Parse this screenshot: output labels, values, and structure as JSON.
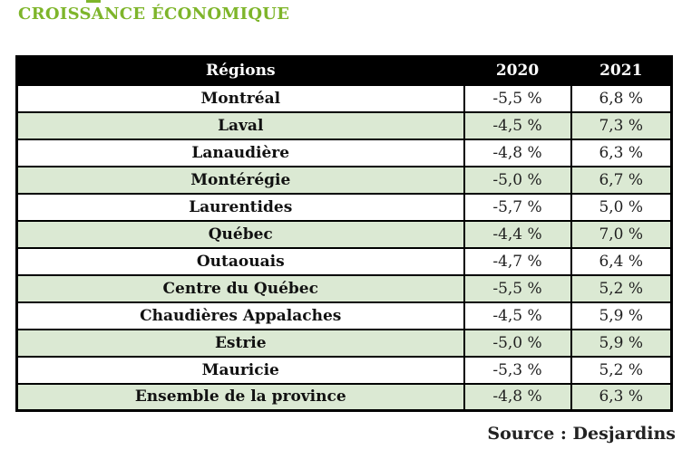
{
  "title": "CROISSANCE ÉCONOMIQUE",
  "source": "Source : Desjardins",
  "colors": {
    "title_green": "#7eb52a",
    "row_green": "#dbe9d3",
    "header_bg": "#000000",
    "header_text": "#ffffff",
    "border_black": "#000000",
    "text_dark": "#1f1f1f"
  },
  "chart_data": {
    "type": "table",
    "title": "CROISSANCE ÉCONOMIQUE",
    "columns": [
      "Régions",
      "2020",
      "2021"
    ],
    "rows": [
      {
        "region": "Montréal",
        "y2020": "-5,5 %",
        "y2021": "6,8 %"
      },
      {
        "region": "Laval",
        "y2020": "-4,5 %",
        "y2021": "7,3 %"
      },
      {
        "region": "Lanaudière",
        "y2020": "-4,8 %",
        "y2021": "6,3 %"
      },
      {
        "region": "Montérégie",
        "y2020": "-5,0 %",
        "y2021": "6,7 %"
      },
      {
        "region": "Laurentides",
        "y2020": "-5,7 %",
        "y2021": "5,0 %"
      },
      {
        "region": "Québec",
        "y2020": "-4,4 %",
        "y2021": "7,0 %"
      },
      {
        "region": "Outaouais",
        "y2020": "-4,7 %",
        "y2021": "6,4 %"
      },
      {
        "region": "Centre du Québec",
        "y2020": "-5,5 %",
        "y2021": "5,2 %"
      },
      {
        "region": "Chaudières Appalaches",
        "y2020": "-4,5 %",
        "y2021": "5,9 %"
      },
      {
        "region": "Estrie",
        "y2020": "-5,0 %",
        "y2021": "5,9 %"
      },
      {
        "region": "Mauricie",
        "y2020": "-5,3 %",
        "y2021": "5,2 %"
      },
      {
        "region": "Ensemble de la province",
        "y2020": "-4,8 %",
        "y2021": "6,3 %"
      }
    ],
    "values_2020": [
      -5.5,
      -4.5,
      -4.8,
      -5.0,
      -5.7,
      -4.4,
      -4.7,
      -5.5,
      -4.5,
      -5.0,
      -5.3,
      -4.8
    ],
    "values_2021": [
      6.8,
      7.3,
      6.3,
      6.7,
      5.0,
      7.0,
      6.4,
      5.2,
      5.9,
      5.9,
      5.2,
      6.3
    ],
    "value_unit": "%",
    "source": "Source : Desjardins"
  }
}
